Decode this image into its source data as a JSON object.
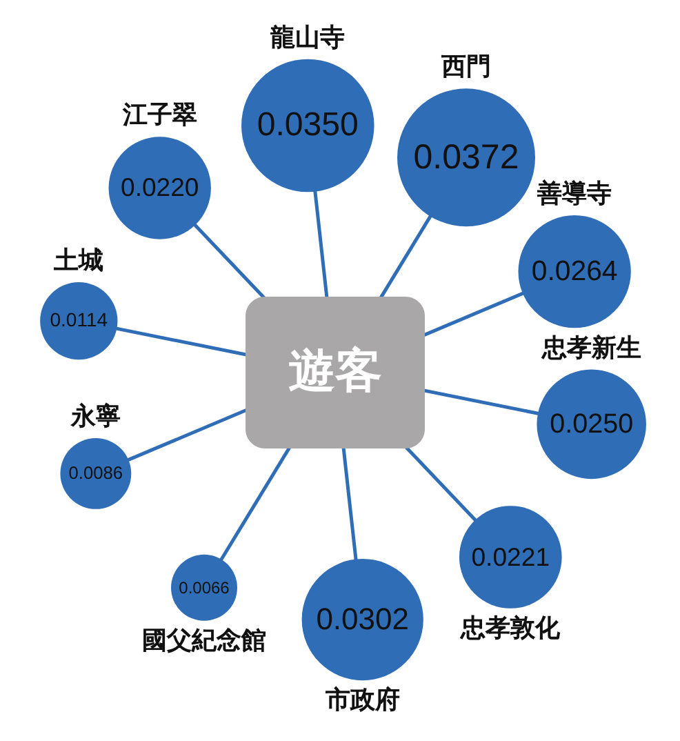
{
  "chart_data": {
    "type": "other",
    "title": "遊客",
    "categories": [
      "龍山寺",
      "西門",
      "善導寺",
      "忠孝新生",
      "忠孝敦化",
      "市政府",
      "國父紀念館",
      "永寧",
      "土城",
      "江子翠"
    ],
    "values": [
      0.035,
      0.0372,
      0.0264,
      0.025,
      0.0221,
      0.0302,
      0.0066,
      0.0086,
      0.0114,
      0.022
    ],
    "value_labels": [
      "0.0350",
      "0.0372",
      "0.0264",
      "0.0250",
      "0.0221",
      "0.0302",
      "0.0066",
      "0.0086",
      "0.0114",
      "0.0220"
    ],
    "color": "#2f6db7"
  }
}
